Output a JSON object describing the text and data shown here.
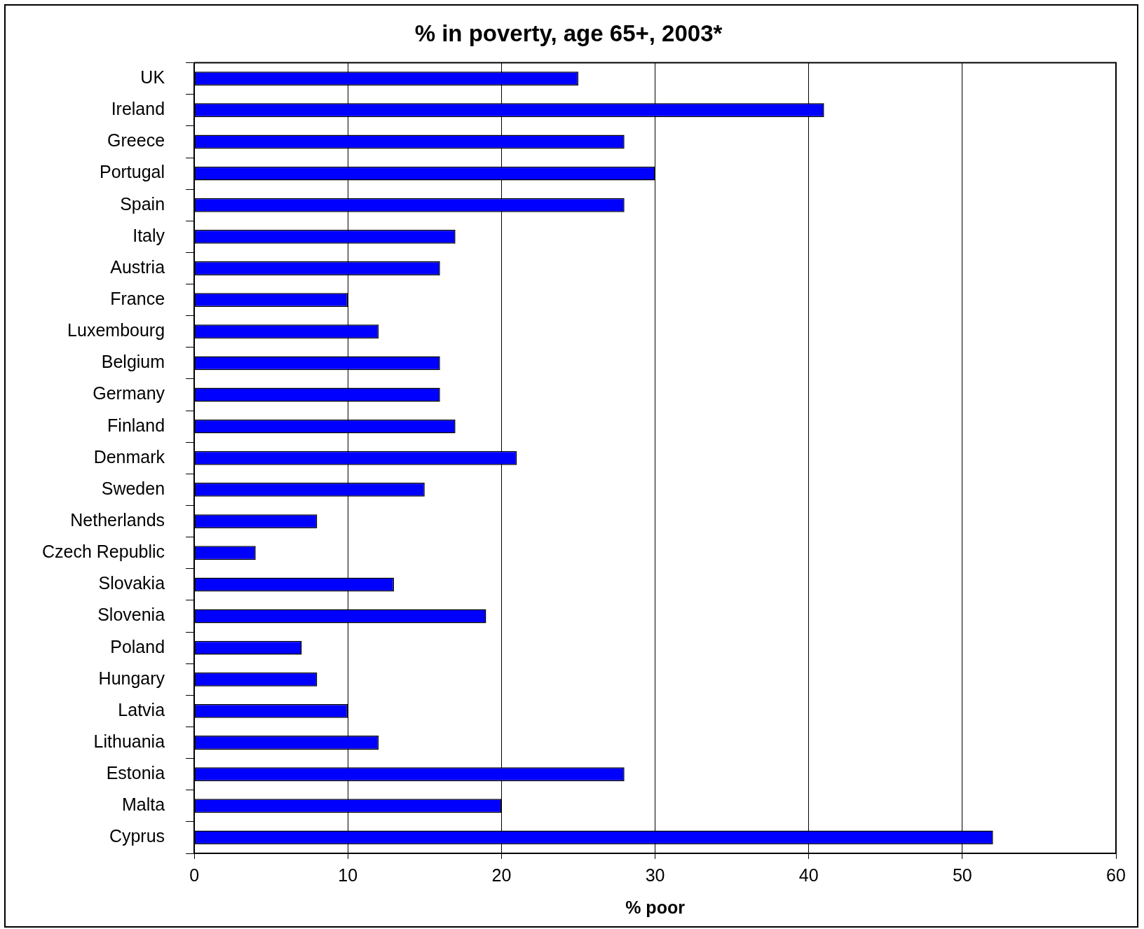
{
  "chart_data": {
    "type": "bar",
    "orientation": "horizontal",
    "title": "% in poverty, age 65+, 2003*",
    "xlabel": "% poor",
    "categories": [
      "UK",
      "Ireland",
      "Greece",
      "Portugal",
      "Spain",
      "Italy",
      "Austria",
      "France",
      "Luxembourg",
      "Belgium",
      "Germany",
      "Finland",
      "Denmark",
      "Sweden",
      "Netherlands",
      "Czech Republic",
      "Slovakia",
      "Slovenia",
      "Poland",
      "Hungary",
      "Latvia",
      "Lithuania",
      "Estonia",
      "Malta",
      "Cyprus"
    ],
    "values": [
      25,
      41,
      28,
      30,
      28,
      17,
      16,
      10,
      12,
      16,
      16,
      17,
      21,
      15,
      8,
      4,
      13,
      19,
      7,
      8,
      10,
      12,
      28,
      20,
      52
    ],
    "color": "#0000ff",
    "xlim": [
      0,
      60
    ],
    "xticks": [
      0,
      10,
      20,
      30,
      40,
      50,
      60
    ],
    "grid": "x",
    "legend": false
  }
}
